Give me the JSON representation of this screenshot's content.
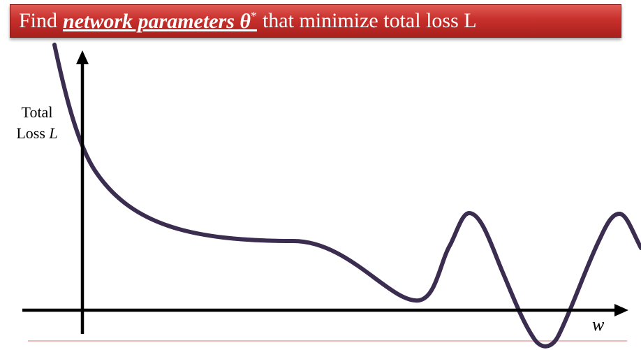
{
  "title": {
    "prefix": "Find",
    "emphasis": "network parameters θ",
    "superscript": "*",
    "suffix": "that minimize total loss L"
  },
  "axes": {
    "y_label_line1": "Total",
    "y_label_line2_text": "Loss ",
    "y_label_line2_italic": "L",
    "x_label": "w"
  },
  "colors": {
    "banner": "#c8302c",
    "curve": "#3b2d4f",
    "axis": "#000000",
    "baseline": "#e8a0a0"
  }
}
